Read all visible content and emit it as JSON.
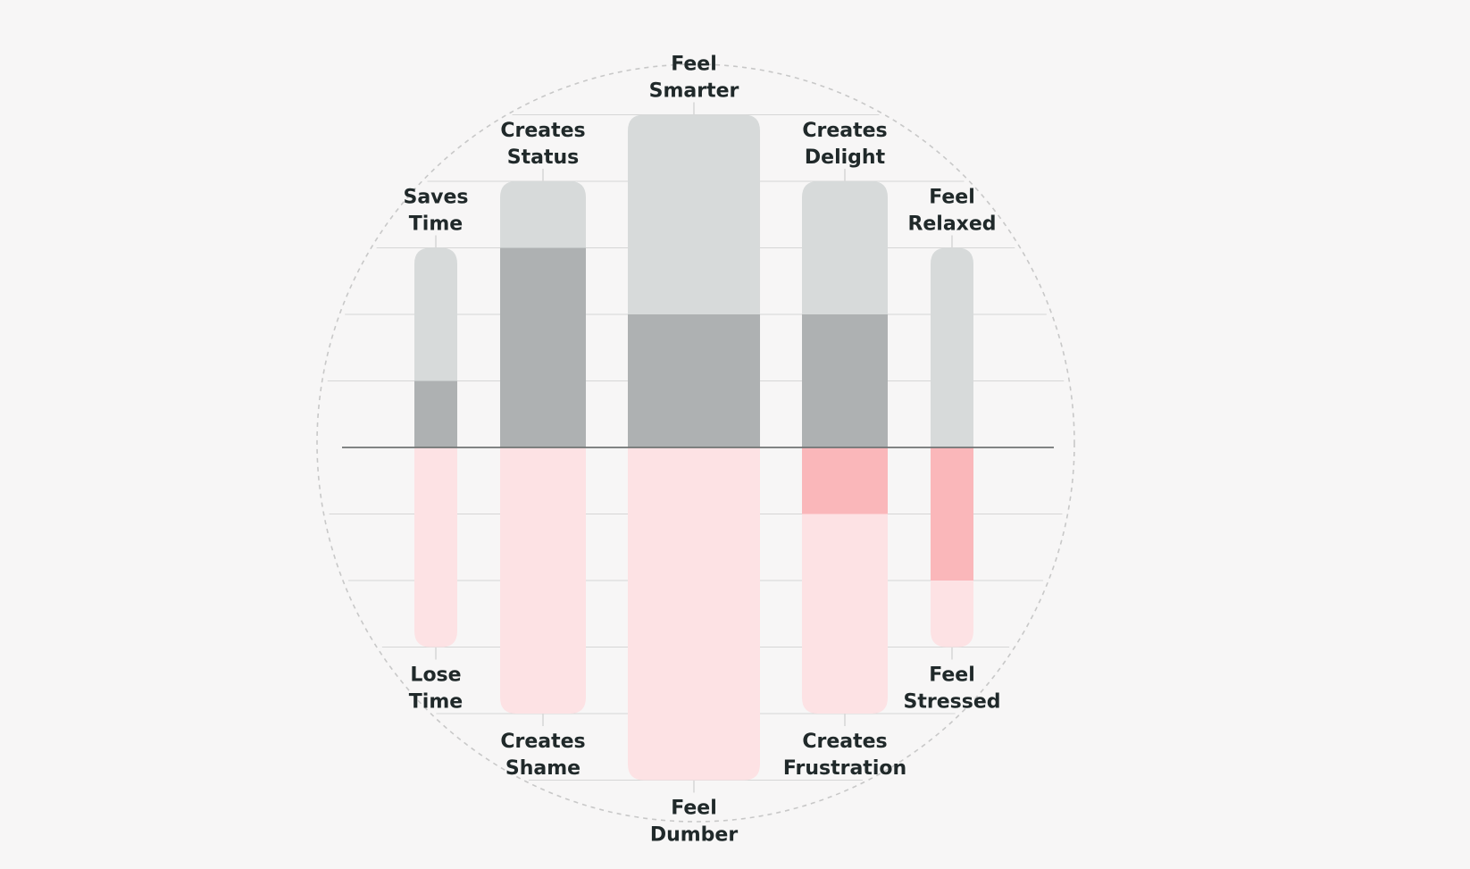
{
  "chart_data": {
    "type": "bar",
    "orientation": "diverging",
    "colors": {
      "background": "#f7f6f6",
      "upper_light": "#d7dada",
      "upper_dark": "#aeb1b2",
      "lower_light": "#fde2e4",
      "lower_dark": "#fab7ba",
      "axis": "#707474",
      "gridline": "#d6d6d6",
      "circle": "#c8c8c8",
      "text": "#20292a"
    },
    "ylim": [
      -5,
      5
    ],
    "grid": true,
    "pairs": [
      {
        "upper_label": [
          "Saves",
          "Time"
        ],
        "lower_label": [
          "Lose",
          "Time"
        ],
        "upper_extent": 3,
        "upper_fill": 1,
        "lower_extent": 3,
        "lower_fill": 0
      },
      {
        "upper_label": [
          "Creates",
          "Status"
        ],
        "lower_label": [
          "Creates",
          "Shame"
        ],
        "upper_extent": 4,
        "upper_fill": 3,
        "lower_extent": 4,
        "lower_fill": 0
      },
      {
        "upper_label": [
          "Feel",
          "Smarter"
        ],
        "lower_label": [
          "Feel",
          "Dumber"
        ],
        "upper_extent": 5,
        "upper_fill": 2,
        "lower_extent": 5,
        "lower_fill": 0
      },
      {
        "upper_label": [
          "Creates",
          "Delight"
        ],
        "lower_label": [
          "Creates",
          "Frustration"
        ],
        "upper_extent": 4,
        "upper_fill": 2,
        "lower_extent": 4,
        "lower_fill": 1
      },
      {
        "upper_label": [
          "Feel",
          "Relaxed"
        ],
        "lower_label": [
          "Feel",
          "Stressed"
        ],
        "upper_extent": 3,
        "upper_fill": 0,
        "lower_extent": 3,
        "lower_fill": 2
      }
    ]
  }
}
